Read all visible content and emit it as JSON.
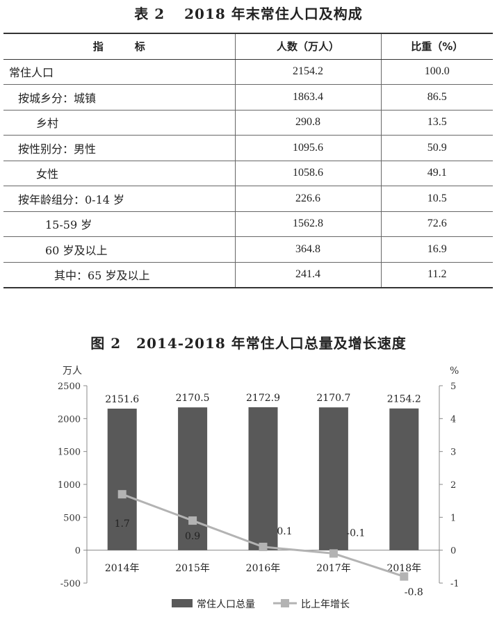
{
  "table": {
    "title_num": "表 2",
    "title_text": "2018 年末常住人口及构成",
    "headers": [
      "指　　　标",
      "人数（万人）",
      "比重（%）"
    ],
    "rows": [
      {
        "label": "常住人口",
        "count": "2154.2",
        "share": "100.0",
        "indent": 0
      },
      {
        "label": "按城乡分：城镇",
        "count": "1863.4",
        "share": "86.5",
        "indent": 1
      },
      {
        "label": "乡村",
        "count": "290.8",
        "share": "13.5",
        "indent": 3
      },
      {
        "label": "按性别分：男性",
        "count": "1095.6",
        "share": "50.9",
        "indent": 1
      },
      {
        "label": "女性",
        "count": "1058.6",
        "share": "49.1",
        "indent": 3
      },
      {
        "label": "按年龄组分：0-14 岁",
        "count": "226.6",
        "share": "10.5",
        "indent": 1
      },
      {
        "label": "15-59 岁",
        "count": "1562.8",
        "share": "72.6",
        "indent": 4
      },
      {
        "label": "60 岁及以上",
        "count": "364.8",
        "share": "16.9",
        "indent": 4
      },
      {
        "label": "其中：65 岁及以上",
        "count": "241.4",
        "share": "11.2",
        "indent": 5
      }
    ]
  },
  "chart_title": {
    "num": "图 2",
    "text": "2014-2018 年常住人口总量及增长速度"
  },
  "chart_data": {
    "type": "bar",
    "categories": [
      "2014年",
      "2015年",
      "2016年",
      "2017年",
      "2018年"
    ],
    "series": [
      {
        "name": "常住人口总量",
        "type": "bar",
        "axis": "left",
        "values": [
          2151.6,
          2170.5,
          2172.9,
          2170.7,
          2154.2
        ],
        "labels": [
          "2151.6",
          "2170.5",
          "2172.9",
          "2170.7",
          "2154.2"
        ],
        "color": "#595959"
      },
      {
        "name": "比上年增长",
        "type": "line",
        "axis": "right",
        "values": [
          1.7,
          0.9,
          0.1,
          -0.1,
          -0.8
        ],
        "labels": [
          "1.7",
          "0.9",
          "0.1",
          "-0.1",
          "-0.8"
        ],
        "color": "#b3b3b3"
      }
    ],
    "ylabel_left": "万人",
    "ylabel_right": "%",
    "ylim_left": [
      -500,
      2500
    ],
    "ylim_right": [
      -1,
      5
    ],
    "yticks_left": [
      "-500",
      "0",
      "500",
      "1000",
      "1500",
      "2000",
      "2500"
    ],
    "yticks_right": [
      "-1",
      "0",
      "1",
      "2",
      "3",
      "4",
      "5"
    ],
    "grid": false,
    "legend": "bottom"
  }
}
